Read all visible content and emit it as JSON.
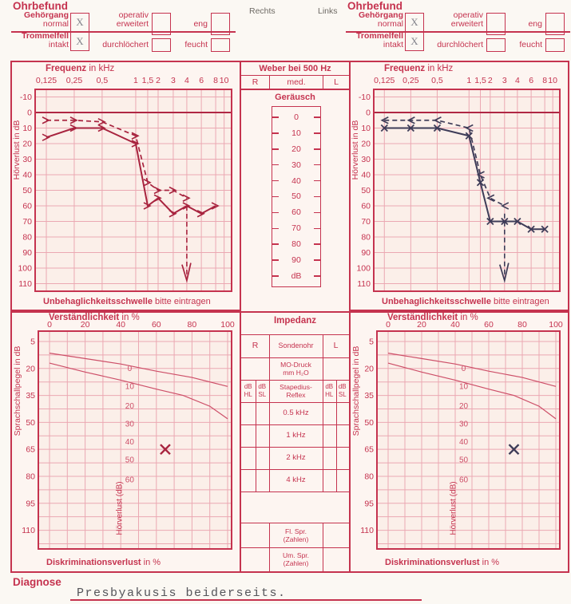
{
  "colors": {
    "form_red": "#c5334f",
    "grid_pink": "#eba8b2",
    "panel_bg": "#fdf5f1",
    "chart_bg": "#fbefe9",
    "page_bg": "#fbf8f3",
    "zero_line": "#b02744",
    "ref_curve": "#cd4f68",
    "right_ear_ink": "#a8243f",
    "left_ear_ink": "#3e3c58",
    "pencil_gray": "#86868e",
    "typed_ink": "#55555a"
  },
  "header": {
    "rechts": "Rechts",
    "links": "Links"
  },
  "ohrbefund": {
    "title": "Ohrbefund",
    "gehoergang": "Gehörgang",
    "normal": "normal",
    "operativ": "operativ",
    "erweitert": "erweitert",
    "eng": "eng",
    "trommelfell": "Trommelfell",
    "intakt": "intakt",
    "durchloechert": "durchlöchert",
    "feucht": "feucht",
    "check_mark": "X"
  },
  "weber": {
    "title": "Weber bei 500 Hz",
    "cols": [
      "R",
      "med.",
      "L"
    ]
  },
  "geraeusch": {
    "title": "Geräusch",
    "scale": [
      "0",
      "10",
      "20",
      "30",
      "40",
      "50",
      "60",
      "70",
      "80",
      "90",
      "dB"
    ]
  },
  "impedanz": {
    "title": "Impedanz",
    "col_r": "R",
    "col_probe": "Sondenohr",
    "col_l": "L",
    "pressure": "MO-Druck\nmm H₂O",
    "hdr_hl": "dB\nHL",
    "hdr_sl": "dB\nSL",
    "hdr_reflex": "Stapedius-\nReflex",
    "freq_rows": [
      "0.5 kHz",
      "1 kHz",
      "2 kHz",
      "4 kHz"
    ],
    "speech_rows": [
      "Fl. Spr.\n(Zahlen)",
      "Um. Spr.\n(Zahlen)"
    ]
  },
  "diagnose": {
    "label": "Diagnose",
    "text": "Presbyakusis beiderseits."
  },
  "chart_data": [
    {
      "id": "audiogram-rechts",
      "type": "line",
      "ear": "Rechts",
      "color": "#a8243f",
      "title_bold": "Frequenz",
      "title_rest": " in kHz",
      "ylabel": "Hörverlust in dB",
      "x_tick_labels": [
        "0,125",
        "0,25",
        "0,5",
        "1",
        "1,5",
        "2",
        "3",
        "4",
        "6",
        "8",
        "10"
      ],
      "x_values": [
        0.125,
        0.25,
        0.5,
        1,
        1.5,
        2,
        3,
        4,
        6,
        8,
        10
      ],
      "y_ticks": [
        -10,
        0,
        10,
        20,
        30,
        40,
        50,
        60,
        70,
        80,
        90,
        100,
        110
      ],
      "footer_bold": "Unbehaglichkeitsschwelle",
      "footer_rest": " bitte eintragen",
      "series": [
        {
          "name": "Luftleitung",
          "line": "solid",
          "marker": "arrow-right",
          "points": [
            [
              0.125,
              16
            ],
            [
              0.25,
              10
            ],
            [
              0.5,
              10
            ],
            [
              1,
              20
            ],
            [
              1.5,
              60
            ],
            [
              2,
              55
            ],
            [
              3,
              65
            ],
            [
              4,
              60
            ],
            [
              6,
              65
            ],
            [
              8,
              60
            ]
          ]
        },
        {
          "name": "Knochenleitung",
          "line": "dashed",
          "marker": "arrow-right",
          "points": [
            [
              0.125,
              5
            ],
            [
              0.25,
              5
            ],
            [
              0.5,
              6
            ],
            [
              1,
              15
            ],
            [
              1.5,
              45
            ],
            [
              2,
              50
            ],
            [
              3,
              50
            ],
            [
              4,
              55
            ]
          ],
          "no_response": {
            "x": 4,
            "from": 60,
            "to": 108
          }
        }
      ]
    },
    {
      "id": "audiogram-links",
      "type": "line",
      "ear": "Links",
      "color": "#3e3c58",
      "title_bold": "Frequenz",
      "title_rest": " in kHz",
      "ylabel": "Hörverlust in dB",
      "x_tick_labels": [
        "0,125",
        "0,25",
        "0,5",
        "1",
        "1,5",
        "2",
        "3",
        "4",
        "6",
        "8",
        "10"
      ],
      "x_values": [
        0.125,
        0.25,
        0.5,
        1,
        1.5,
        2,
        3,
        4,
        6,
        8,
        10
      ],
      "y_ticks": [
        -10,
        0,
        10,
        20,
        30,
        40,
        50,
        60,
        70,
        80,
        90,
        100,
        110
      ],
      "footer_bold": "Unbehaglichkeitsschwelle",
      "footer_rest": " bitte eintragen",
      "series": [
        {
          "name": "Luftleitung",
          "line": "solid",
          "marker": "x",
          "points": [
            [
              0.125,
              10
            ],
            [
              0.25,
              10
            ],
            [
              0.5,
              10
            ],
            [
              1,
              15
            ],
            [
              1.5,
              45
            ],
            [
              2,
              70
            ],
            [
              3,
              70
            ],
            [
              4,
              70
            ],
            [
              6,
              75
            ],
            [
              8,
              75
            ]
          ]
        },
        {
          "name": "Knochenleitung",
          "line": "dashed",
          "marker": "arrow-left",
          "points": [
            [
              0.125,
              5
            ],
            [
              0.25,
              5
            ],
            [
              0.5,
              5
            ],
            [
              1,
              10
            ],
            [
              1.5,
              40
            ],
            [
              2,
              55
            ],
            [
              3,
              60
            ]
          ],
          "no_response": {
            "x": 3,
            "from": 65,
            "to": 108
          }
        }
      ]
    },
    {
      "id": "speech-rechts",
      "type": "line",
      "ear": "Rechts",
      "color": "#a8243f",
      "title_bold": "Verständlichkeit",
      "title_rest": " in %",
      "ylabel": "Sprachschallpegel in dB",
      "x_ticks": [
        0,
        20,
        40,
        60,
        80,
        100
      ],
      "y_ticks": [
        5,
        20,
        35,
        50,
        65,
        80,
        95,
        110
      ],
      "footer_bold": "Diskriminationsverlust",
      "footer_rest": " in %",
      "hv_label": "Hörverlust (dB)",
      "hv_scale": [
        {
          "label": "0",
          "db": 20
        },
        {
          "label": "10",
          "db": 30
        },
        {
          "label": "20",
          "db": 41
        },
        {
          "label": "30",
          "db": 51
        },
        {
          "label": "40",
          "db": 61
        },
        {
          "label": "50",
          "db": 71
        },
        {
          "label": "60",
          "db": 82
        }
      ],
      "ref_curves": [
        {
          "name": "Zahlen",
          "points": [
            [
              0,
              11.5
            ],
            [
              20,
              14.5
            ],
            [
              40,
              17.5
            ],
            [
              50,
              19.5
            ],
            [
              60,
              21.5
            ],
            [
              80,
              25
            ],
            [
              100,
              30
            ]
          ]
        },
        {
          "name": "Einsilber",
          "points": [
            [
              0,
              17
            ],
            [
              20,
              22
            ],
            [
              40,
              26.5
            ],
            [
              50,
              29
            ],
            [
              60,
              31.5
            ],
            [
              75,
              35
            ],
            [
              90,
              41
            ],
            [
              100,
              48
            ]
          ]
        }
      ],
      "marks": [
        {
          "shape": "x",
          "pct": 65,
          "db": 65
        }
      ]
    },
    {
      "id": "speech-links",
      "type": "line",
      "ear": "Links",
      "color": "#3e3c58",
      "title_bold": "Verständlichkeit",
      "title_rest": " in %",
      "ylabel": "Sprachschallpegel in dB",
      "x_ticks": [
        0,
        20,
        40,
        60,
        80,
        100
      ],
      "y_ticks": [
        5,
        20,
        35,
        50,
        65,
        80,
        95,
        110
      ],
      "footer_bold": "Diskriminationsverlust",
      "footer_rest": " in %",
      "hv_label": "Hörverlust (dB)",
      "hv_scale": [
        {
          "label": "0",
          "db": 20
        },
        {
          "label": "10",
          "db": 30
        },
        {
          "label": "20",
          "db": 41
        },
        {
          "label": "30",
          "db": 51
        },
        {
          "label": "40",
          "db": 61
        },
        {
          "label": "50",
          "db": 71
        },
        {
          "label": "60",
          "db": 82
        }
      ],
      "ref_curves": [
        {
          "name": "Zahlen",
          "points": [
            [
              0,
              11.5
            ],
            [
              20,
              14.5
            ],
            [
              40,
              17.5
            ],
            [
              50,
              19.5
            ],
            [
              60,
              21.5
            ],
            [
              80,
              25
            ],
            [
              100,
              30
            ]
          ]
        },
        {
          "name": "Einsilber",
          "points": [
            [
              0,
              17
            ],
            [
              20,
              22
            ],
            [
              40,
              26.5
            ],
            [
              50,
              29
            ],
            [
              60,
              31.5
            ],
            [
              75,
              35
            ],
            [
              90,
              41
            ],
            [
              100,
              48
            ]
          ]
        }
      ],
      "marks": [
        {
          "shape": "x",
          "pct": 75,
          "db": 65
        }
      ]
    }
  ]
}
